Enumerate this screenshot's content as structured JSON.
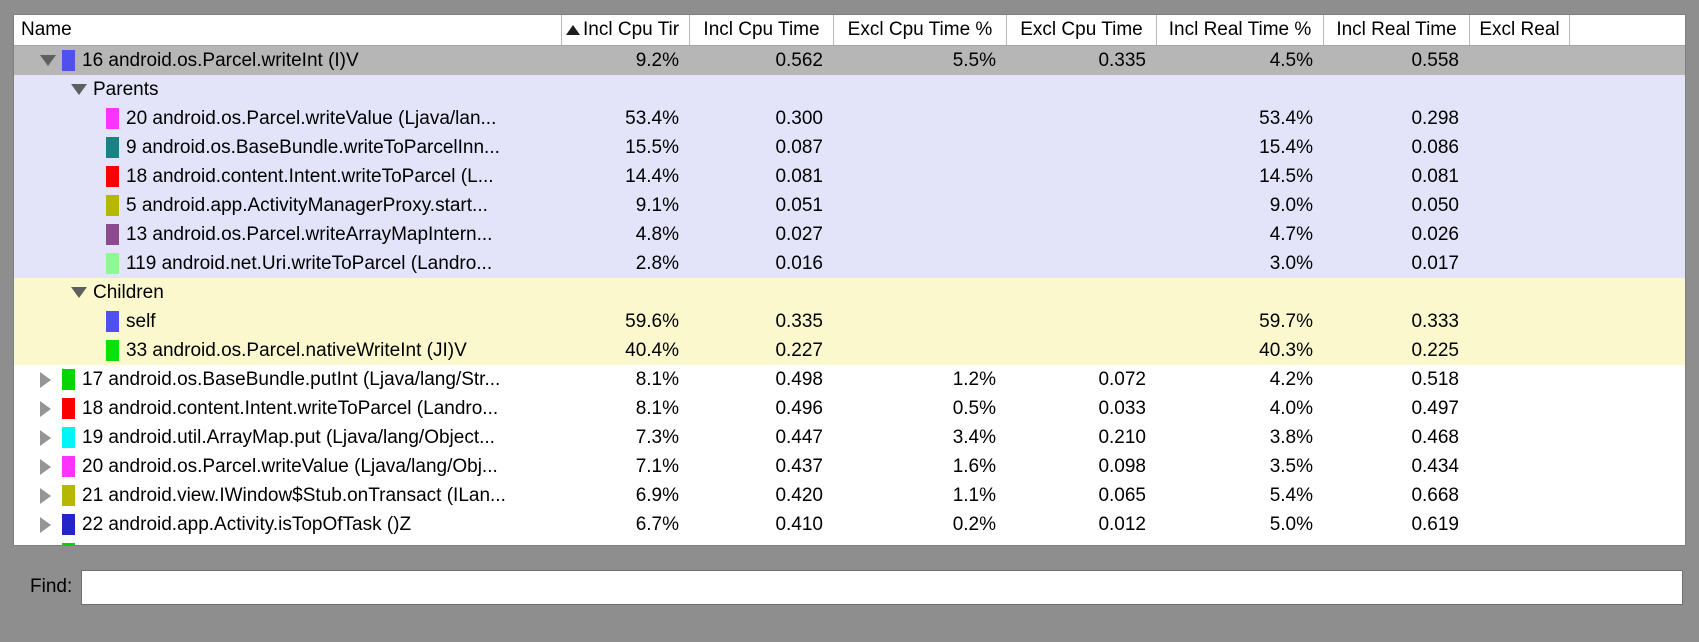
{
  "find": {
    "label": "Find:",
    "value": ""
  },
  "table": {
    "columns": [
      {
        "id": "name",
        "label": "Name",
        "align": "left"
      },
      {
        "id": "incl-cpu-pct",
        "label": "Incl Cpu Tir",
        "sorted": true
      },
      {
        "id": "incl-cpu-time",
        "label": "Incl Cpu Time"
      },
      {
        "id": "excl-cpu-pct",
        "label": "Excl Cpu Time %"
      },
      {
        "id": "excl-cpu-time",
        "label": "Excl Cpu Time"
      },
      {
        "id": "incl-real-pct",
        "label": "Incl Real Time %"
      },
      {
        "id": "incl-real-time",
        "label": "Incl Real Time"
      },
      {
        "id": "excl-real",
        "label": "Excl Real"
      }
    ],
    "rows": [
      {
        "level": "top",
        "disclosure": "expanded",
        "swatch": "#5050ef",
        "bg": "selected",
        "name": "16 android.os.Parcel.writeInt (I)V",
        "values": [
          "9.2%",
          "0.562",
          "5.5%",
          "0.335",
          "4.5%",
          "0.558"
        ]
      },
      {
        "level": "section",
        "disclosure": "expanded",
        "bg": "parents",
        "name": "Parents",
        "values": [
          "",
          "",
          "",
          "",
          "",
          ""
        ]
      },
      {
        "level": "sub",
        "swatch": "#ff33ff",
        "bg": "parents",
        "name": "20 android.os.Parcel.writeValue (Ljava/lan...",
        "values": [
          "53.4%",
          "0.300",
          "",
          "",
          "53.4%",
          "0.298"
        ]
      },
      {
        "level": "sub",
        "swatch": "#1a8282",
        "bg": "parents",
        "name": "9 android.os.BaseBundle.writeToParcelInn...",
        "values": [
          "15.5%",
          "0.087",
          "",
          "",
          "15.4%",
          "0.086"
        ]
      },
      {
        "level": "sub",
        "swatch": "#fb0000",
        "bg": "parents",
        "name": "18 android.content.Intent.writeToParcel (L...",
        "values": [
          "14.4%",
          "0.081",
          "",
          "",
          "14.5%",
          "0.081"
        ]
      },
      {
        "level": "sub",
        "swatch": "#b6b800",
        "bg": "parents",
        "name": "5 android.app.ActivityManagerProxy.start...",
        "values": [
          "9.1%",
          "0.051",
          "",
          "",
          "9.0%",
          "0.050"
        ]
      },
      {
        "level": "sub",
        "swatch": "#8d4a8d",
        "bg": "parents",
        "name": "13 android.os.Parcel.writeArrayMapIntern...",
        "values": [
          "4.8%",
          "0.027",
          "",
          "",
          "4.7%",
          "0.026"
        ]
      },
      {
        "level": "sub",
        "swatch": "#8ef98e",
        "bg": "parents",
        "name": "119 android.net.Uri.writeToParcel (Landro...",
        "values": [
          "2.8%",
          "0.016",
          "",
          "",
          "3.0%",
          "0.017"
        ]
      },
      {
        "level": "section",
        "disclosure": "expanded",
        "bg": "children",
        "name": "Children",
        "values": [
          "",
          "",
          "",
          "",
          "",
          ""
        ]
      },
      {
        "level": "sub",
        "swatch": "#5050ef",
        "bg": "children",
        "name": "self",
        "values": [
          "59.6%",
          "0.335",
          "",
          "",
          "59.7%",
          "0.333"
        ]
      },
      {
        "level": "sub",
        "swatch": "#0ae00a",
        "bg": "children",
        "name": "33 android.os.Parcel.nativeWriteInt (JI)V",
        "values": [
          "40.4%",
          "0.227",
          "",
          "",
          "40.3%",
          "0.225"
        ]
      },
      {
        "level": "top",
        "disclosure": "collapsed",
        "swatch": "#05d405",
        "bg": "white",
        "name": "17 android.os.BaseBundle.putInt (Ljava/lang/Str...",
        "values": [
          "8.1%",
          "0.498",
          "1.2%",
          "0.072",
          "4.2%",
          "0.518"
        ]
      },
      {
        "level": "top",
        "disclosure": "collapsed",
        "swatch": "#fb0000",
        "bg": "white",
        "name": "18 android.content.Intent.writeToParcel (Landro...",
        "values": [
          "8.1%",
          "0.496",
          "0.5%",
          "0.033",
          "4.0%",
          "0.497"
        ]
      },
      {
        "level": "top",
        "disclosure": "collapsed",
        "swatch": "#00f6f6",
        "bg": "white",
        "name": "19 android.util.ArrayMap.put (Ljava/lang/Object...",
        "values": [
          "7.3%",
          "0.447",
          "3.4%",
          "0.210",
          "3.8%",
          "0.468"
        ]
      },
      {
        "level": "top",
        "disclosure": "collapsed",
        "swatch": "#ff33ff",
        "bg": "white",
        "name": "20 android.os.Parcel.writeValue (Ljava/lang/Obj...",
        "values": [
          "7.1%",
          "0.437",
          "1.6%",
          "0.098",
          "3.5%",
          "0.434"
        ]
      },
      {
        "level": "top",
        "disclosure": "collapsed",
        "swatch": "#b6b800",
        "bg": "white",
        "name": "21 android.view.IWindow$Stub.onTransact (ILan...",
        "values": [
          "6.9%",
          "0.420",
          "1.1%",
          "0.065",
          "5.4%",
          "0.668"
        ]
      },
      {
        "level": "top",
        "disclosure": "collapsed",
        "swatch": "#2424c8",
        "bg": "white",
        "name": "22 android.app.Activity.isTopOfTask ()Z",
        "values": [
          "6.7%",
          "0.410",
          "0.2%",
          "0.012",
          "5.0%",
          "0.619"
        ]
      },
      {
        "level": "top",
        "disclosure": "collapsed",
        "swatch": "#05d405",
        "bg": "white",
        "partial": true,
        "name": "",
        "values": [
          "",
          "",
          "",
          "",
          "",
          ""
        ]
      }
    ]
  }
}
